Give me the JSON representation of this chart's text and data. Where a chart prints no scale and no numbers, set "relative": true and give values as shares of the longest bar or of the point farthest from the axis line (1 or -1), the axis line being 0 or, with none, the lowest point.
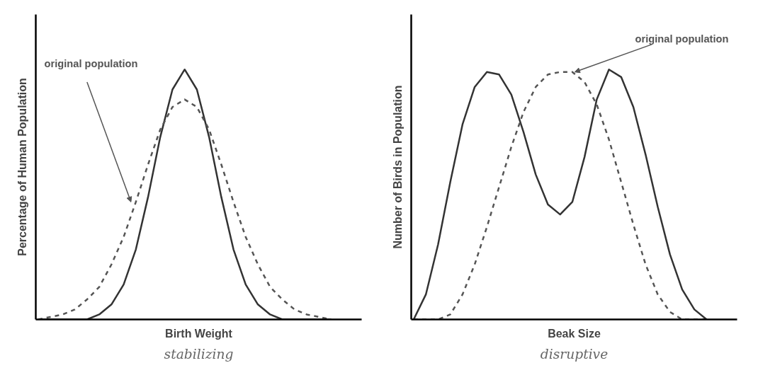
{
  "chart_data": [
    {
      "type": "line",
      "relative": true,
      "xlabel": "Birth Weight",
      "ylabel": "Percentage of Human Population",
      "annotations": [
        "original population",
        "stabilizing"
      ],
      "categories": [
        null,
        null,
        null,
        null,
        null,
        null,
        null,
        null,
        null,
        null,
        null,
        null,
        null,
        null,
        null,
        null,
        null,
        null,
        null,
        null,
        null,
        null,
        null,
        null,
        null
      ],
      "series": [
        {
          "color": "#333333",
          "line_style": "solid",
          "values": [
            0,
            0,
            0,
            0,
            0,
            0.02,
            0.06,
            0.14,
            0.28,
            0.49,
            0.73,
            0.92,
            1,
            0.92,
            0.73,
            0.49,
            0.28,
            0.14,
            0.06,
            0.02,
            0,
            0,
            0,
            0,
            0
          ]
        },
        {
          "color": "#555555",
          "line_style": "dashed",
          "values": [
            0,
            0.01,
            0.02,
            0.04,
            0.08,
            0.13,
            0.22,
            0.33,
            0.47,
            0.62,
            0.76,
            0.85,
            0.88,
            0.85,
            0.76,
            0.62,
            0.47,
            0.33,
            0.22,
            0.13,
            0.08,
            0.04,
            0.02,
            0.01,
            0
          ]
        }
      ]
    },
    {
      "type": "line",
      "relative": true,
      "xlabel": "Beak Size",
      "ylabel": "Number of Birds in Population",
      "annotations": [
        "original population",
        "disruptive"
      ],
      "categories": [
        null,
        null,
        null,
        null,
        null,
        null,
        null,
        null,
        null,
        null,
        null,
        null,
        null,
        null,
        null,
        null,
        null,
        null,
        null,
        null,
        null,
        null,
        null,
        null,
        null
      ],
      "series": [
        {
          "color": "#333333",
          "line_style": "solid",
          "values": [
            0,
            0.1,
            0.3,
            0.55,
            0.78,
            0.93,
            0.99,
            0.98,
            0.9,
            0.75,
            0.58,
            0.46,
            0.42,
            0.47,
            0.65,
            0.88,
            1,
            0.97,
            0.85,
            0.66,
            0.45,
            0.26,
            0.12,
            0.04,
            0
          ]
        },
        {
          "color": "#555555",
          "line_style": "dashed",
          "values": [
            0,
            0,
            0,
            0.02,
            0.1,
            0.22,
            0.37,
            0.53,
            0.69,
            0.83,
            0.93,
            0.98,
            0.99,
            0.99,
            0.95,
            0.86,
            0.72,
            0.55,
            0.38,
            0.22,
            0.1,
            0.03,
            0,
            0,
            0
          ]
        }
      ]
    }
  ]
}
